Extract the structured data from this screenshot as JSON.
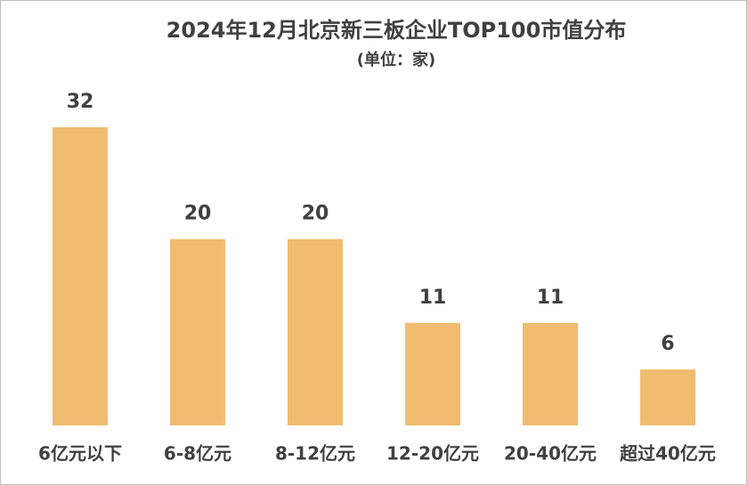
{
  "chart_data": {
    "type": "bar",
    "title": "2024年12月北京新三板企业TOP100市值分布",
    "subtitle": "(单位：家)",
    "categories": [
      "6亿元以下",
      "6-8亿元",
      "8-12亿元",
      "12-20亿元",
      "20-40亿元",
      "超过40亿元"
    ],
    "values": [
      32,
      20,
      20,
      11,
      11,
      6
    ],
    "color": "#f0bc70"
  }
}
